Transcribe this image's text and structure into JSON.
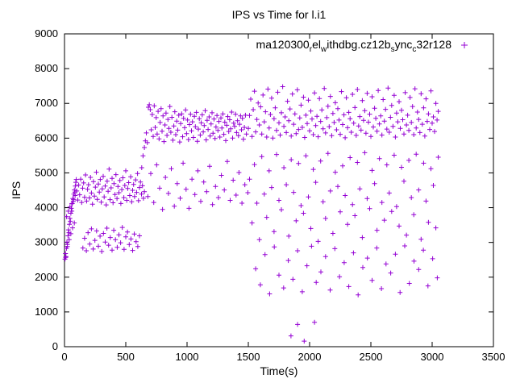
{
  "title": "IPS vs Time for l.i1",
  "xlabel": "Time(s)",
  "ylabel": "IPS",
  "legend": {
    "plain_label": "ma120300_rel_withdbg.cz12b_sync_c32r128",
    "segments": [
      {
        "t": "ma120300"
      },
      {
        "s": "r"
      },
      {
        "t": "el"
      },
      {
        "s": "w"
      },
      {
        "t": "ithdbg.cz12b"
      },
      {
        "s": "s"
      },
      {
        "t": "ync"
      },
      {
        "s": "c"
      },
      {
        "t": "32r128"
      }
    ]
  },
  "colors": {
    "marker": "#9400D3",
    "axis": "#000000",
    "background": "#FFFFFF"
  },
  "chart_data": {
    "type": "scatter",
    "title": "IPS vs Time for l.i1",
    "xlabel": "Time(s)",
    "ylabel": "IPS",
    "xlim": [
      0,
      3500
    ],
    "ylim": [
      0,
      9000
    ],
    "x_ticks": [
      0,
      500,
      1000,
      1500,
      2000,
      2500,
      3000,
      3500
    ],
    "y_ticks": [
      0,
      1000,
      2000,
      3000,
      4000,
      5000,
      6000,
      7000,
      8000,
      9000
    ],
    "grid": false,
    "legend_position": "top-center-inside",
    "marker": "plus",
    "series": [
      {
        "name": "ma120300_rel_withdbg.cz12b_sync_c32r128",
        "color": "#9400D3",
        "runs": [
          {
            "t0": 4,
            "dt": 4,
            "y": [
              2520,
              2680,
              2590,
              2830,
              3010,
              2940,
              3190,
              3360,
              3280,
              3520,
              3690,
              3610,
              3840,
              3980,
              3900,
              4120,
              4260,
              4180,
              4390,
              4510,
              4450,
              4620,
              4730,
              4810
            ]
          },
          {
            "t0": 10,
            "dt": 7,
            "y": [
              2570,
              3740,
              2880,
              3900,
              3080,
              4020,
              3250,
              4110,
              3420,
              4230,
              3560,
              4350
            ]
          },
          {
            "t0": 100,
            "dt": 8,
            "y": [
              4480,
              4220,
              4650,
              4370,
              4820,
              4150,
              4560,
              4710,
              4300,
              4940,
              4190,
              4530,
              4660,
              4280,
              4870,
              4420,
              4100,
              4750,
              4330,
              4590,
              5020,
              4240,
              4680,
              4450,
              4810,
              4160,
              4540,
              4900,
              4310,
              4620,
              4080,
              4760,
              4470,
              5110,
              4230,
              4570,
              4840,
              4140,
              4690,
              4380,
              4950,
              4260,
              4610,
              4430,
              4780,
              4120,
              4520,
              4860,
              4290,
              4640,
              5060,
              4210,
              4550,
              4720,
              4350,
              4890,
              4170,
              4500,
              4670,
              4320,
              4800,
              4440,
              4980,
              4200,
              4580,
              4740,
              4390,
              4630,
              4270,
              4460
            ]
          },
          {
            "t0": 150,
            "dt": 14,
            "y": [
              2840,
              3120,
              2760,
              3280,
              2950,
              3390,
              2810,
              3060,
              3330,
              2890,
              3180,
              2740,
              3260,
              3010,
              3410,
              2920,
              3140,
              2780,
              3350,
              3080,
              2860,
              3220,
              2990,
              3430,
              2800,
              3160,
              3300,
              2940,
              3100,
              2770,
              3240,
              3020,
              2880,
              3190
            ]
          },
          {
            "t0": 660,
            "dt": 8,
            "y": [
              5920,
              6150,
              5870,
              6890,
              6960,
              6820,
              6240,
              6680,
              6050,
              6930,
              6310,
              6590,
              6120,
              6770,
              5980,
              6450,
              6850,
              6200,
              6640,
              5900,
              6380,
              6720,
              6080,
              6540,
              6280,
              6910,
              6170,
              6600,
              5940,
              6350,
              6760,
              6100,
              6490,
              6230,
              6660,
              5890,
              6420,
              6700,
              6040,
              6570,
              6300,
              6810,
              6130,
              6520,
              5960,
              6390,
              6690,
              6210,
              6470,
              6020,
              6630,
              6330,
              6740,
              5910,
              6260,
              6560,
              6090,
              6440,
              6670,
              6180,
              6360,
              6790,
              5950,
              6510,
              6250,
              6610,
              6060,
              6410,
              6730,
              6140,
              6550,
              5990,
              6320,
              6650,
              6220,
              6480,
              6030,
              6580,
              6290,
              6700,
              6110,
              6460,
              5930,
              6370,
              6620,
              6190,
              6530,
              6270,
              6750,
              6000,
              6430,
              6340,
              6690,
              6160,
              6500,
              6070,
              6400,
              6640,
              6240,
              6570,
              5970,
              6310,
              6660,
              6120
            ]
          },
          {
            "t0": 680,
            "dt": 24,
            "y": [
              4320,
              4980,
              4150,
              5230,
              4560,
              3950,
              4870,
              4410,
              5120,
              4040,
              4690,
              4270,
              5280,
              4530,
              3980,
              4820,
              4380,
              5060,
              4180,
              4740,
              4460,
              5190,
              4090,
              4610,
              4290,
              4930,
              4510,
              5330,
              4210,
              4790,
              4360,
              5010,
              4130,
              4660,
              4430
            ]
          },
          {
            "t0": 1500,
            "dt": 10,
            "y": [
              6280,
              6650,
              7120,
              6050,
              6820,
              7350,
              6180,
              6540,
              7010,
              6380,
              6900,
              6120,
              7240,
              6470,
              6760,
              6030,
              7410,
              6290,
              6680,
              7150,
              6000,
              6560,
              6870,
              6220,
              7320,
              6440,
              6090,
              6730,
              7480,
              6340,
              6610,
              6160,
              7060,
              6500,
              6840,
              6060,
              7270,
              6400,
              6700,
              6130,
              7390,
              6250,
              6580,
              6950,
              6310,
              7180,
              6020,
              6660,
              6420,
              7090,
              6210,
              6780,
              6550,
              6100,
              7300,
              6360,
              6630,
              6040,
              7140,
              6480,
              6810,
              6270,
              7430,
              6150,
              6590,
              6920,
              6330,
              7200,
              6070,
              6710,
              6450,
              7020,
              6240,
              6850,
              6520,
              6110,
              7340,
              6390,
              6670,
              6010,
              7160,
              6300,
              6740,
              6560,
              6170,
              7260,
              6430,
              6880,
              6080,
              7400,
              6350,
              6620,
              6230,
              7080,
              6510,
              6790,
              6140,
              7290,
              6460,
              6690,
              6050,
              7190,
              6320,
              6860,
              6570,
              6200,
              7370,
              6410,
              6640,
              6090,
              7110,
              6490,
              6830,
              6260,
              7440,
              6170,
              6600,
              6940,
              6340,
              7230,
              6030,
              6720,
              6470,
              7050,
              6280,
              6800,
              6530,
              6120,
              7310,
              6380,
              6660,
              6220,
              7170,
              6450,
              6910,
              6100,
              7420,
              6290,
              6750,
              6540,
              6160,
              7280,
              6400,
              6870,
              6060,
              7130,
              6480,
              6700,
              6250,
              7360,
              6430,
              6610,
              6190,
              7000,
              6520,
              6770
            ]
          },
          {
            "t0": 1510,
            "dt": 20,
            "y": [
              4820,
              3560,
              5240,
              4130,
              3080,
              5470,
              4390,
              3720,
              5060,
              4580,
              3310,
              5530,
              4210,
              3940,
              5150,
              4660,
              3180,
              5380,
              4440,
              3620,
              5270,
              4060,
              3840,
              5490,
              4310,
              3400,
              5100,
              4730,
              3030,
              5340,
              4170,
              3690,
              5560,
              4480,
              3260,
              5020,
              4610,
              3880,
              5200,
              4350,
              3520,
              5440,
              4090,
              3770,
              5300,
              4540,
              3140,
              5580,
              4260,
              3970,
              5070,
              4690,
              3350,
              5410,
              4150,
              3640,
              5230,
              4420,
              3890,
              5510,
              4030,
              3470,
              5160,
              4760,
              3210,
              5360,
              4290,
              3800,
              5540,
              4510,
              3090,
              5280,
              4190,
              3580,
              5120,
              4640,
              3420,
              5450
            ]
          },
          {
            "t0": 1560,
            "dt": 38,
            "y": [
              2240,
              1780,
              2650,
              1520,
              2870,
              2060,
              1690,
              2480,
              1940,
              2760,
              1580,
              2330,
              2890,
              1850,
              2150,
              2590,
              1630,
              2820,
              2010,
              2420,
              1730,
              2700,
              1490,
              2280,
              2550,
              1910,
              2840,
              1670,
              2380,
              2120,
              2660,
              1560,
              2900,
              1820,
              2460,
              2220,
              2780,
              1750,
              2530,
              1980
            ]
          }
        ],
        "extra_points": [
          [
            630,
            5150
          ],
          [
            641,
            5490
          ],
          [
            652,
            5730
          ],
          [
            1848,
            310
          ],
          [
            1902,
            640
          ],
          [
            1956,
            160
          ],
          [
            2040,
            700
          ]
        ]
      }
    ]
  }
}
